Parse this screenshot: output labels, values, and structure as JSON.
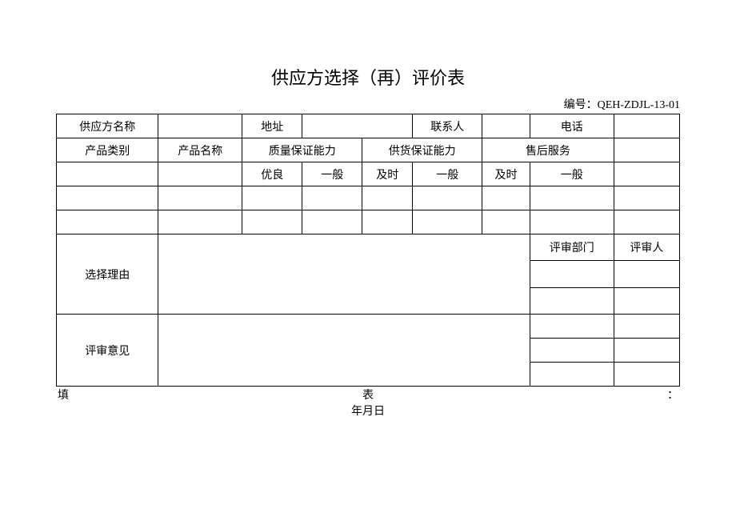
{
  "title": "供应方选择（再）评价表",
  "doc_no_label": "编号：",
  "doc_no": "QEH-ZDJL-13-01",
  "row1": {
    "supplier_name": "供应方名称",
    "address": "地址",
    "contact": "联系人",
    "phone": "电话"
  },
  "row2": {
    "product_category": "产品类别",
    "product_name": "产品名称",
    "quality_ability": "质量保证能力",
    "supply_ability": "供货保证能力",
    "after_service": "售后服务"
  },
  "row3": {
    "excellent": "优良",
    "ordinary": "一般",
    "timely": "及时",
    "ordinary2": "一般",
    "timely2": "及时",
    "ordinary3": "一般"
  },
  "selection_reason": "选择理由",
  "review_dept": "评审部门",
  "reviewer": "评审人",
  "review_opinion": "评审意见",
  "footer_left": "填",
  "footer_mid": "表",
  "footer_right": "：",
  "footer_date": "年月日",
  "colors": {
    "border": "#000000",
    "bg": "#ffffff",
    "text": "#000000"
  },
  "fontsize_title": 22,
  "fontsize_body": 14
}
